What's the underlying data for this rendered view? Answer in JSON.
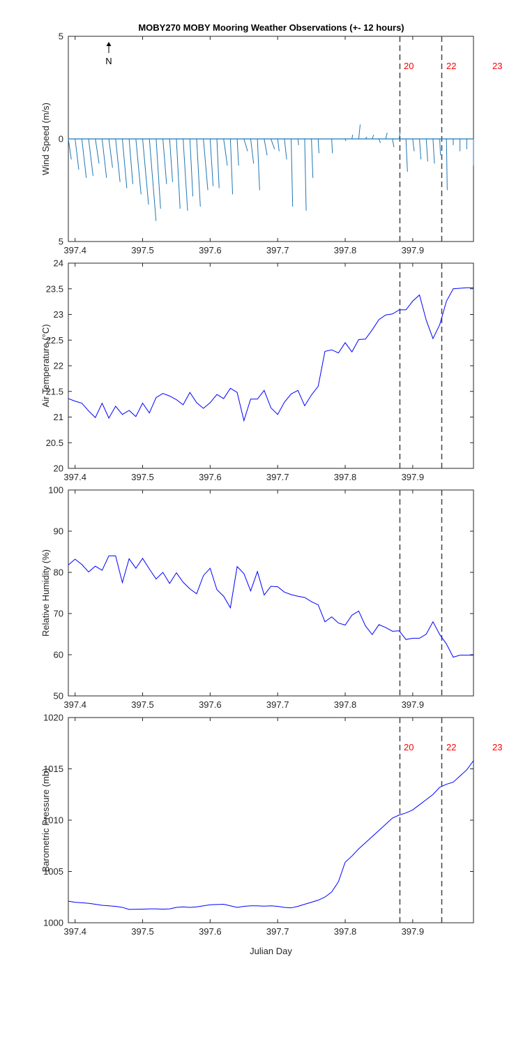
{
  "title": "MOBY270 MOBY Mooring Weather Observations (+- 12 hours)",
  "north_label": "N",
  "colors": {
    "series": "#0000ff",
    "wind": "#1f77b4",
    "marker_label": "#ff0000",
    "dashed": "#444444"
  },
  "chart_data": [
    {
      "id": "wind",
      "type": "line",
      "ylabel": "Wind Speed (m/s)",
      "xlabel": "",
      "xlim": [
        397.39,
        397.99
      ],
      "ylim": [
        -5,
        5
      ],
      "y_tick_values": [
        5,
        0,
        -5
      ],
      "y_tick_labels": [
        "5",
        "0",
        "5"
      ],
      "x_ticks": [
        397.4,
        397.5,
        397.6,
        397.7,
        397.8,
        397.9
      ],
      "vlines": [
        397.881,
        397.943
      ],
      "vline_labels": [
        "20",
        "22",
        "23"
      ],
      "wind": {
        "t": [
          397.39,
          397.4,
          397.41,
          397.42,
          397.43,
          397.44,
          397.45,
          397.46,
          397.47,
          397.48,
          397.49,
          397.5,
          397.51,
          397.52,
          397.53,
          397.54,
          397.55,
          397.56,
          397.57,
          397.58,
          397.59,
          397.6,
          397.61,
          397.62,
          397.63,
          397.64,
          397.65,
          397.66,
          397.67,
          397.68,
          397.69,
          397.7,
          397.71,
          397.72,
          397.73,
          397.74,
          397.75,
          397.76,
          397.77,
          397.78,
          397.79,
          397.8,
          397.81,
          397.82,
          397.83,
          397.84,
          397.85,
          397.86,
          397.87,
          397.88,
          397.89,
          397.9,
          397.91,
          397.92,
          397.93,
          397.94,
          397.95,
          397.96,
          397.97,
          397.98,
          397.99
        ],
        "u": [
          0.04,
          0.05,
          0.06,
          0.06,
          0.05,
          0.06,
          0.05,
          0.06,
          0.06,
          0.05,
          0.07,
          0.08,
          0.09,
          0.06,
          0.05,
          0.04,
          0.05,
          0.06,
          0.04,
          0.05,
          0.06,
          0.04,
          0.03,
          0.05,
          0.03,
          0.02,
          0.05,
          0.04,
          0.03,
          0.04,
          0.05,
          0.02,
          0.03,
          0.02,
          0.01,
          0.02,
          0.02,
          0.01,
          0.01,
          0.01,
          0.01,
          0.01,
          0.01,
          0.02,
          0.02,
          0.02,
          0.02,
          0.02,
          0.02,
          0.01,
          0.02,
          0.02,
          0.02,
          0.02,
          0.02,
          0.01,
          0.01,
          0.0,
          0.0,
          0.0,
          0.0
        ],
        "v": [
          -1.0,
          -1.5,
          -1.9,
          -1.8,
          -1.2,
          -1.9,
          -1.4,
          -2.1,
          -2.4,
          -2.2,
          -2.7,
          -3.2,
          -4.0,
          -3.4,
          -2.2,
          -2.1,
          -3.4,
          -3.5,
          -2.8,
          -3.3,
          -2.5,
          -2.3,
          -2.4,
          -1.3,
          -2.7,
          -1.3,
          -0.6,
          -1.2,
          -2.5,
          -0.8,
          -0.5,
          -0.6,
          -1.0,
          -3.3,
          -0.3,
          -3.5,
          -1.9,
          -0.7,
          0.0,
          -0.7,
          0.0,
          -0.1,
          0.2,
          0.7,
          0.1,
          0.2,
          -0.2,
          0.3,
          -0.4,
          0.3,
          -1.6,
          -0.6,
          -1.0,
          -1.1,
          -1.2,
          -0.8,
          -2.5,
          -0.3,
          -0.6,
          -0.5,
          -1.3
        ],
        "scale": 0.11
      }
    },
    {
      "id": "air",
      "type": "line",
      "ylabel": "Air Temperature (°C)",
      "xlabel": "",
      "xlim": [
        397.39,
        397.99
      ],
      "ylim": [
        20,
        24
      ],
      "y_tick_values": [
        20,
        20.5,
        21,
        21.5,
        22,
        22.5,
        23,
        23.5,
        24
      ],
      "y_tick_labels": [
        "20",
        "20.5",
        "21",
        "21.5",
        "22",
        "22.5",
        "23",
        "23.5",
        "24"
      ],
      "x_ticks": [
        397.4,
        397.5,
        397.6,
        397.7,
        397.8,
        397.9
      ],
      "vlines": [
        397.881,
        397.943
      ],
      "x": [
        397.39,
        397.4,
        397.41,
        397.42,
        397.43,
        397.44,
        397.45,
        397.46,
        397.47,
        397.48,
        397.49,
        397.5,
        397.51,
        397.52,
        397.53,
        397.54,
        397.55,
        397.56,
        397.57,
        397.58,
        397.59,
        397.6,
        397.61,
        397.62,
        397.63,
        397.64,
        397.65,
        397.66,
        397.67,
        397.68,
        397.69,
        397.7,
        397.71,
        397.72,
        397.73,
        397.74,
        397.75,
        397.76,
        397.77,
        397.78,
        397.79,
        397.8,
        397.81,
        397.82,
        397.83,
        397.84,
        397.85,
        397.86,
        397.87,
        397.88,
        397.89,
        397.9,
        397.91,
        397.92,
        397.93,
        397.94,
        397.95,
        397.96,
        397.97,
        397.98,
        397.99
      ],
      "y": [
        21.36,
        21.31,
        21.27,
        21.12,
        20.99,
        21.27,
        20.98,
        21.21,
        21.05,
        21.13,
        21.01,
        21.27,
        21.08,
        21.38,
        21.46,
        21.41,
        21.34,
        21.24,
        21.48,
        21.28,
        21.17,
        21.28,
        21.44,
        21.36,
        21.56,
        21.48,
        20.93,
        21.35,
        21.35,
        21.52,
        21.18,
        21.05,
        21.29,
        21.45,
        21.52,
        21.22,
        21.43,
        21.6,
        22.28,
        22.31,
        22.25,
        22.45,
        22.27,
        22.51,
        22.52,
        22.7,
        22.9,
        22.99,
        23.01,
        23.09,
        23.09,
        23.26,
        23.38,
        22.89,
        22.53,
        22.8,
        23.26,
        23.5,
        23.51,
        23.52,
        23.52
      ]
    },
    {
      "id": "rh",
      "type": "line",
      "ylabel": "Relative Humidity (%)",
      "xlabel": "",
      "xlim": [
        397.39,
        397.99
      ],
      "ylim": [
        50,
        100
      ],
      "y_tick_values": [
        50,
        60,
        70,
        80,
        90,
        100
      ],
      "y_tick_labels": [
        "50",
        "60",
        "70",
        "80",
        "90",
        "100"
      ],
      "x_ticks": [
        397.4,
        397.5,
        397.6,
        397.7,
        397.8,
        397.9
      ],
      "vlines": [
        397.881,
        397.943
      ],
      "x": [
        397.39,
        397.4,
        397.41,
        397.42,
        397.43,
        397.44,
        397.45,
        397.46,
        397.47,
        397.48,
        397.49,
        397.5,
        397.51,
        397.52,
        397.53,
        397.54,
        397.55,
        397.56,
        397.57,
        397.58,
        397.59,
        397.6,
        397.61,
        397.62,
        397.63,
        397.64,
        397.65,
        397.66,
        397.67,
        397.68,
        397.69,
        397.7,
        397.71,
        397.72,
        397.73,
        397.74,
        397.75,
        397.76,
        397.77,
        397.78,
        397.79,
        397.8,
        397.81,
        397.82,
        397.83,
        397.84,
        397.85,
        397.86,
        397.87,
        397.88,
        397.89,
        397.9,
        397.91,
        397.92,
        397.93,
        397.94,
        397.95,
        397.96,
        397.97,
        397.98,
        397.99
      ],
      "y": [
        81.8,
        83.2,
        81.9,
        80.1,
        81.5,
        80.5,
        84.0,
        84.0,
        77.5,
        83.3,
        81.0,
        83.4,
        80.8,
        78.4,
        80.0,
        77.3,
        79.9,
        77.6,
        76.0,
        74.8,
        79.2,
        81.0,
        75.8,
        74.2,
        71.4,
        81.4,
        79.7,
        75.5,
        80.2,
        74.5,
        76.6,
        76.5,
        75.2,
        74.6,
        74.2,
        73.9,
        72.9,
        72.1,
        68.0,
        69.2,
        67.7,
        67.2,
        69.6,
        70.6,
        67.0,
        64.9,
        67.3,
        66.6,
        65.7,
        65.8,
        63.7,
        64.0,
        64.0,
        65.0,
        68.0,
        64.9,
        62.6,
        59.4,
        59.9,
        59.9,
        59.9
      ]
    },
    {
      "id": "bp",
      "type": "line",
      "ylabel": "Barometric Pressure (mb)",
      "xlabel": "Julian Day",
      "xlim": [
        397.39,
        397.99
      ],
      "ylim": [
        1000,
        1020
      ],
      "y_tick_values": [
        1000,
        1005,
        1010,
        1015,
        1020
      ],
      "y_tick_labels": [
        "1000",
        "1005",
        "1010",
        "1015",
        "1020"
      ],
      "x_ticks": [
        397.4,
        397.5,
        397.6,
        397.7,
        397.8,
        397.9
      ],
      "vlines": [
        397.881,
        397.943
      ],
      "vline_labels": [
        "20",
        "22",
        "23"
      ],
      "x": [
        397.39,
        397.4,
        397.41,
        397.42,
        397.43,
        397.44,
        397.45,
        397.46,
        397.47,
        397.48,
        397.49,
        397.5,
        397.51,
        397.52,
        397.53,
        397.54,
        397.55,
        397.56,
        397.57,
        397.58,
        397.59,
        397.6,
        397.61,
        397.62,
        397.63,
        397.64,
        397.65,
        397.66,
        397.67,
        397.68,
        397.69,
        397.7,
        397.71,
        397.72,
        397.73,
        397.74,
        397.75,
        397.76,
        397.77,
        397.78,
        397.79,
        397.8,
        397.81,
        397.82,
        397.83,
        397.84,
        397.85,
        397.86,
        397.87,
        397.88,
        397.89,
        397.9,
        397.91,
        397.92,
        397.93,
        397.94,
        397.95,
        397.96,
        397.97,
        397.98,
        397.99
      ],
      "y": [
        1002.1,
        1002.0,
        1001.95,
        1001.9,
        1001.8,
        1001.7,
        1001.65,
        1001.6,
        1001.5,
        1001.3,
        1001.32,
        1001.33,
        1001.35,
        1001.35,
        1001.33,
        1001.35,
        1001.5,
        1001.55,
        1001.5,
        1001.55,
        1001.65,
        1001.75,
        1001.78,
        1001.8,
        1001.65,
        1001.5,
        1001.6,
        1001.65,
        1001.65,
        1001.62,
        1001.65,
        1001.6,
        1001.5,
        1001.45,
        1001.6,
        1001.8,
        1002.0,
        1002.2,
        1002.5,
        1003.0,
        1004.0,
        1005.9,
        1006.5,
        1007.2,
        1007.8,
        1008.4,
        1009.0,
        1009.6,
        1010.2,
        1010.5,
        1010.7,
        1011.0,
        1011.5,
        1012.0,
        1012.5,
        1013.2,
        1013.5,
        1013.7,
        1014.3,
        1014.9,
        1015.8
      ]
    }
  ]
}
